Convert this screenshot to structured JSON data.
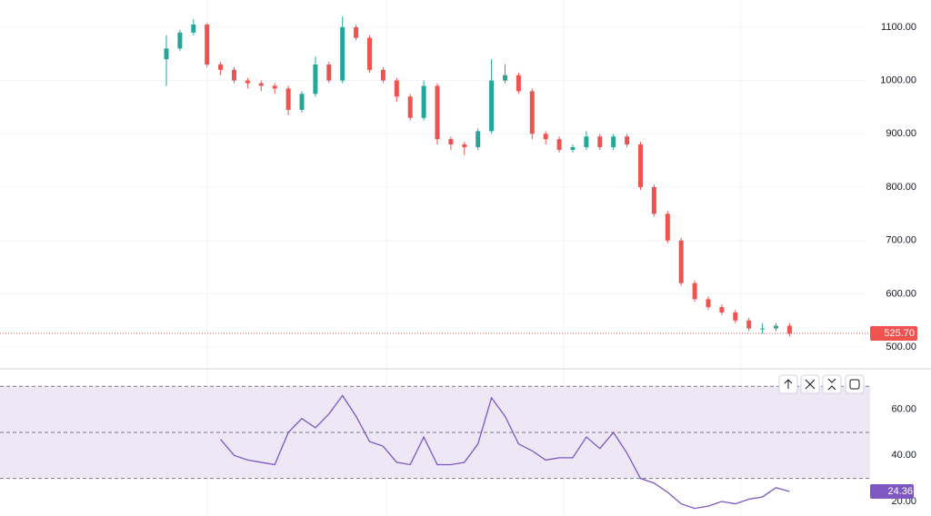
{
  "chart_data": [
    {
      "type": "candlestick",
      "up_color": "#26a69a",
      "down_color": "#ef5350",
      "open": [
        1040,
        1060,
        1090,
        1105,
        1030,
        1020,
        1000,
        995,
        990,
        985,
        945,
        975,
        1030,
        1000,
        1100,
        1080,
        1020,
        1000,
        970,
        930,
        990,
        890,
        880,
        875,
        905,
        1000,
        1010,
        980,
        900,
        890,
        870,
        875,
        895,
        875,
        895,
        880,
        800,
        750,
        700,
        620,
        590,
        575,
        565,
        550,
        535,
        535,
        540
      ],
      "high": [
        1085,
        1095,
        1115,
        1108,
        1035,
        1025,
        1005,
        1000,
        995,
        990,
        980,
        1045,
        1035,
        1120,
        1105,
        1085,
        1025,
        1005,
        975,
        1000,
        995,
        895,
        885,
        910,
        1040,
        1030,
        1015,
        985,
        905,
        895,
        880,
        905,
        900,
        900,
        900,
        885,
        805,
        755,
        705,
        625,
        595,
        580,
        570,
        555,
        545,
        545,
        545
      ],
      "low": [
        990,
        1055,
        1085,
        1025,
        1010,
        995,
        985,
        980,
        975,
        935,
        940,
        970,
        995,
        995,
        1075,
        1015,
        995,
        960,
        925,
        925,
        880,
        870,
        860,
        870,
        900,
        995,
        975,
        890,
        880,
        865,
        865,
        870,
        870,
        870,
        875,
        795,
        745,
        695,
        615,
        585,
        570,
        560,
        545,
        530,
        525,
        530,
        520
      ],
      "close": [
        1060,
        1090,
        1105,
        1030,
        1020,
        1000,
        995,
        990,
        985,
        945,
        975,
        1030,
        1000,
        1100,
        1080,
        1020,
        1000,
        970,
        930,
        990,
        890,
        880,
        875,
        905,
        1000,
        1010,
        980,
        900,
        890,
        870,
        875,
        895,
        875,
        895,
        880,
        800,
        750,
        700,
        620,
        590,
        575,
        565,
        550,
        535,
        535,
        540,
        525.7
      ],
      "ylim": [
        461,
        1151
      ],
      "yticks": [
        {
          "value": 500,
          "label": "500.00"
        },
        {
          "value": 600,
          "label": "600.00"
        },
        {
          "value": 700,
          "label": "700.00"
        },
        {
          "value": 800,
          "label": "800.00"
        },
        {
          "value": 900,
          "label": "900.00"
        },
        {
          "value": 1000,
          "label": "1000.00"
        },
        {
          "value": 1100,
          "label": "1100.00"
        }
      ],
      "last_price": {
        "value": 525.7,
        "label": "525.70"
      },
      "grid": true
    },
    {
      "type": "line",
      "color": "#7e57c2",
      "band_color": "#ede7f6",
      "values": [
        null,
        null,
        null,
        null,
        47,
        40,
        38,
        37,
        36,
        50,
        56,
        52,
        58,
        66,
        57,
        46,
        44,
        37,
        36,
        48,
        36,
        36,
        37,
        45,
        65,
        57,
        45,
        42,
        38,
        39,
        39,
        48,
        43,
        50,
        41,
        30,
        28,
        24,
        19,
        17,
        18,
        20,
        19,
        21,
        22,
        26,
        24.36
      ],
      "levels": [
        70,
        50,
        30
      ],
      "ylim": [
        13.7,
        77.6
      ],
      "yticks": [
        {
          "value": 20,
          "label": "20.00"
        },
        {
          "value": 40,
          "label": "40.00"
        },
        {
          "value": 60,
          "label": "60.00"
        }
      ],
      "last_value": {
        "value": 24.36,
        "label": "24.36"
      }
    }
  ]
}
